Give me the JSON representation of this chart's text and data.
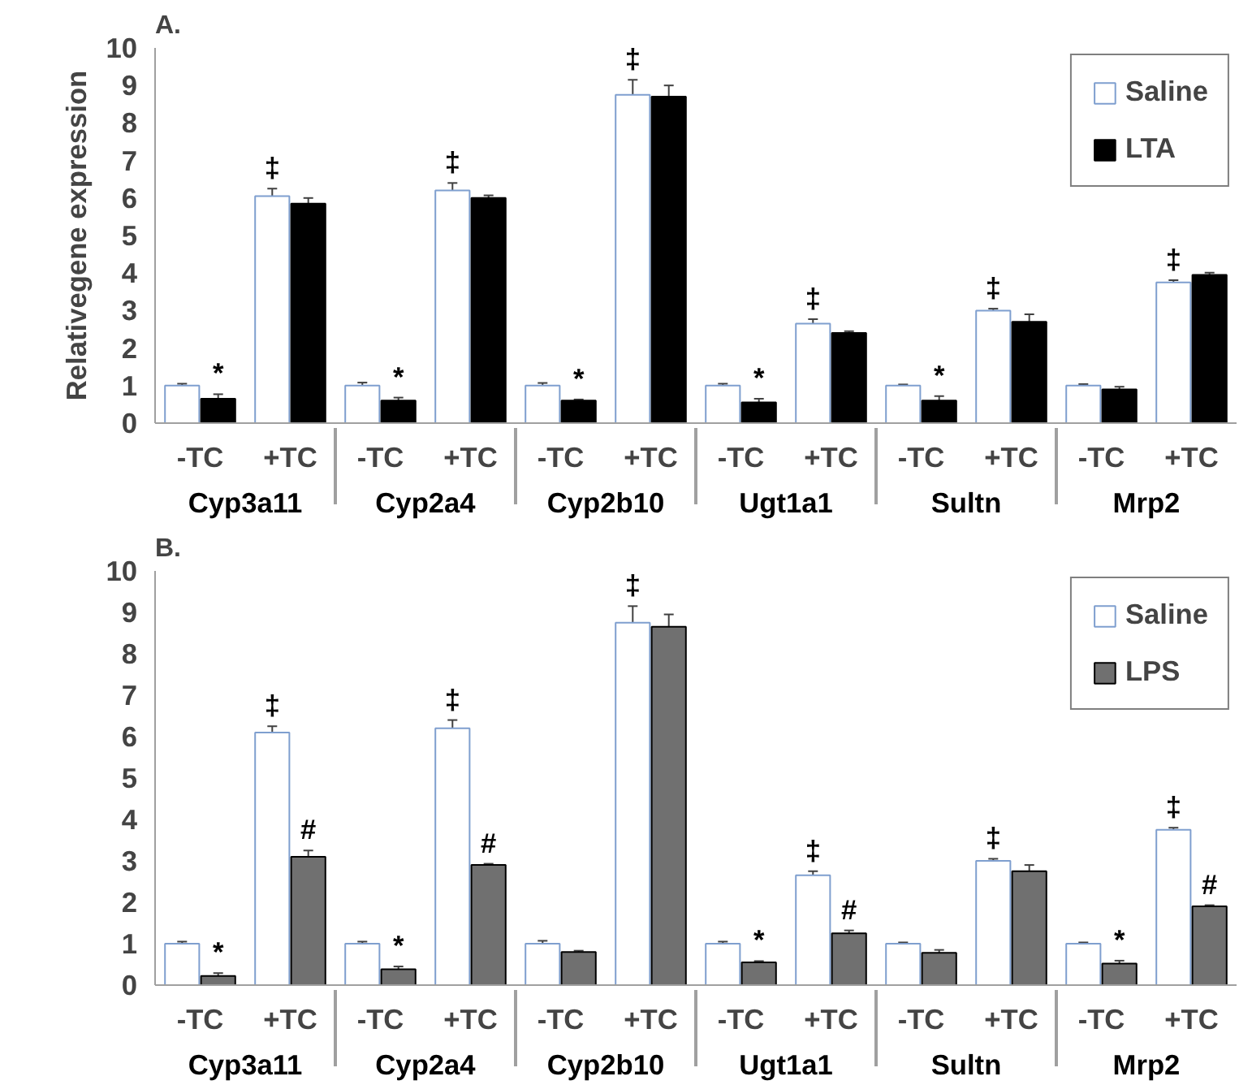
{
  "chart_data": [
    {
      "type": "bar",
      "title": "A.",
      "ylabel": "Relativegene expression",
      "categories": [
        "-TC",
        "+TC",
        "-TC",
        "+TC",
        "-TC",
        "+TC",
        "-TC",
        "+TC",
        "-TC",
        "+TC",
        "-TC",
        "+TC"
      ],
      "annotations": [
        "Cyp3a11",
        "Cyp2a4",
        "Cyp2b10",
        "Ugt1a1",
        "Sultn",
        "Mrp2"
      ],
      "ylim": [
        0,
        10
      ],
      "yticks": [
        0,
        1,
        2,
        3,
        4,
        5,
        6,
        7,
        8,
        9,
        10
      ],
      "grid": false,
      "legend": "top right",
      "series": [
        {
          "name": "Saline",
          "color": "#ffffff",
          "values": [
            1.0,
            6.05,
            1.0,
            6.2,
            1.0,
            8.75,
            1.0,
            2.65,
            1.0,
            3.0,
            1.0,
            3.75
          ],
          "errors": [
            0.05,
            0.2,
            0.08,
            0.2,
            0.07,
            0.4,
            0.05,
            0.12,
            0.03,
            0.05,
            0.04,
            0.06
          ],
          "value_labels": [
            null,
            "‡",
            null,
            "‡",
            null,
            "‡",
            null,
            "‡",
            null,
            "‡",
            null,
            "‡"
          ]
        },
        {
          "name": "LTA",
          "color": "#000000",
          "values": [
            0.65,
            5.85,
            0.6,
            6.0,
            0.6,
            8.7,
            0.55,
            2.4,
            0.6,
            2.7,
            0.9,
            3.95
          ],
          "errors": [
            0.12,
            0.15,
            0.08,
            0.07,
            0.03,
            0.3,
            0.1,
            0.05,
            0.12,
            0.2,
            0.07,
            0.06
          ],
          "value_labels": [
            "*",
            null,
            "*",
            null,
            "*",
            null,
            "*",
            null,
            "*",
            null,
            null,
            null
          ]
        }
      ]
    },
    {
      "type": "bar",
      "title": "B.",
      "categories": [
        "-TC",
        "+TC",
        "-TC",
        "+TC",
        "-TC",
        "+TC",
        "-TC",
        "+TC",
        "-TC",
        "+TC",
        "-TC",
        "+TC"
      ],
      "annotations": [
        "Cyp3a11",
        "Cyp2a4",
        "Cyp2b10",
        "Ugt1a1",
        "Sultn",
        "Mrp2"
      ],
      "ylim": [
        0,
        10
      ],
      "yticks": [
        0,
        1,
        2,
        3,
        4,
        5,
        6,
        7,
        8,
        9,
        10
      ],
      "grid": false,
      "legend": "top right",
      "series": [
        {
          "name": "Saline",
          "color": "#ffffff",
          "values": [
            1.0,
            6.1,
            1.0,
            6.2,
            1.0,
            8.75,
            1.0,
            2.65,
            1.0,
            3.0,
            1.0,
            3.75
          ],
          "errors": [
            0.05,
            0.15,
            0.05,
            0.2,
            0.07,
            0.4,
            0.05,
            0.1,
            0.03,
            0.05,
            0.03,
            0.05
          ],
          "value_labels": [
            null,
            "‡",
            null,
            "‡",
            null,
            "‡",
            null,
            "‡",
            null,
            "‡",
            null,
            "‡"
          ]
        },
        {
          "name": "LPS",
          "color": "#707070",
          "values": [
            0.22,
            3.1,
            0.38,
            2.9,
            0.8,
            8.65,
            0.55,
            1.25,
            0.78,
            2.75,
            0.52,
            1.9
          ],
          "errors": [
            0.07,
            0.15,
            0.07,
            0.03,
            0.03,
            0.3,
            0.03,
            0.07,
            0.07,
            0.15,
            0.07,
            0.03
          ],
          "value_labels": [
            "*",
            "#",
            "*",
            "#",
            null,
            null,
            "*",
            "#",
            null,
            null,
            "*",
            "#"
          ]
        }
      ]
    }
  ]
}
